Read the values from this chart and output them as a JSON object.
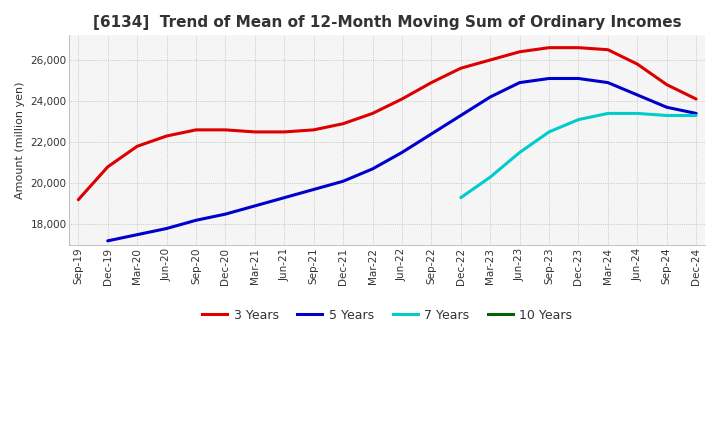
{
  "title": "[6134]  Trend of Mean of 12-Month Moving Sum of Ordinary Incomes",
  "ylabel": "Amount (million yen)",
  "background_color": "#ffffff",
  "plot_bg_color": "#f5f5f5",
  "grid_color": "#aaaaaa",
  "ylim": [
    17000,
    27200
  ],
  "yticks": [
    18000,
    20000,
    22000,
    24000,
    26000
  ],
  "x_labels": [
    "Sep-19",
    "Dec-19",
    "Mar-20",
    "Jun-20",
    "Sep-20",
    "Dec-20",
    "Mar-21",
    "Jun-21",
    "Sep-21",
    "Dec-21",
    "Mar-22",
    "Jun-22",
    "Sep-22",
    "Dec-22",
    "Mar-23",
    "Jun-23",
    "Sep-23",
    "Dec-23",
    "Mar-24",
    "Jun-24",
    "Sep-24",
    "Dec-24"
  ],
  "series": {
    "3 Years": {
      "color": "#dd0000",
      "values": [
        19200,
        20800,
        21800,
        22300,
        22600,
        22600,
        22500,
        22500,
        22600,
        22900,
        23400,
        24100,
        24900,
        25600,
        26000,
        26400,
        26600,
        26600,
        26500,
        25800,
        24800,
        24100
      ]
    },
    "5 Years": {
      "color": "#0000cc",
      "values": [
        null,
        17200,
        17500,
        17800,
        18200,
        18500,
        18900,
        19300,
        19700,
        20100,
        20700,
        21500,
        22400,
        23300,
        24200,
        24900,
        25100,
        25100,
        24900,
        24300,
        23700,
        23400
      ]
    },
    "7 Years": {
      "color": "#00cccc",
      "values": [
        null,
        null,
        null,
        null,
        null,
        null,
        null,
        null,
        null,
        null,
        null,
        null,
        null,
        19300,
        20300,
        21500,
        22500,
        23100,
        23400,
        23400,
        23300,
        23300
      ]
    },
    "10 Years": {
      "color": "#006600",
      "values": [
        null,
        null,
        null,
        null,
        null,
        null,
        null,
        null,
        null,
        null,
        null,
        null,
        null,
        null,
        null,
        null,
        null,
        null,
        null,
        null,
        null,
        null
      ]
    }
  },
  "legend_ncol": 4,
  "title_fontsize": 11,
  "axis_fontsize": 8,
  "tick_fontsize": 7.5,
  "legend_fontsize": 9,
  "linewidth": 2.2
}
